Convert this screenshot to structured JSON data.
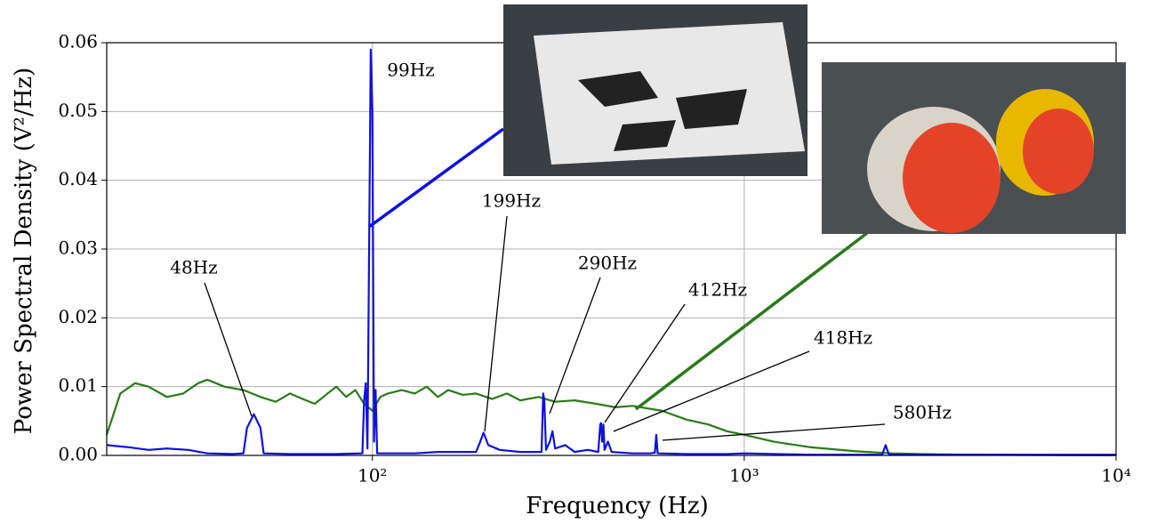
{
  "chart_data": {
    "type": "line",
    "xlabel": "Frequency (Hz)",
    "ylabel": "Power Spectral Density (V²/Hz)",
    "xscale": "log",
    "xlim": [
      19.3,
      10000
    ],
    "ylim": [
      0,
      0.06
    ],
    "xticks": [
      {
        "value": 100,
        "label": "10²"
      },
      {
        "value": 1000,
        "label": "10³"
      },
      {
        "value": 10000,
        "label": "10⁴"
      }
    ],
    "yticks": [
      {
        "value": 0,
        "label": "0.00"
      },
      {
        "value": 0.01,
        "label": "0.01"
      },
      {
        "value": 0.02,
        "label": "0.02"
      },
      {
        "value": 0.03,
        "label": "0.03"
      },
      {
        "value": 0.04,
        "label": "0.04"
      },
      {
        "value": 0.05,
        "label": "0.05"
      },
      {
        "value": 0.06,
        "label": "0.06"
      }
    ],
    "grid": true,
    "annotations": [
      "48Hz",
      "99Hz",
      "199Hz",
      "290Hz",
      "412Hz",
      "418Hz",
      "580Hz"
    ],
    "series": [
      {
        "color": "#2a7a1a",
        "x": [
          19.3,
          21,
          23,
          25,
          28,
          31,
          34,
          36,
          40,
          45,
          50,
          55,
          60,
          65,
          70,
          75,
          80,
          85,
          90,
          95,
          100,
          105,
          110,
          120,
          130,
          140,
          150,
          160,
          175,
          190,
          210,
          230,
          250,
          280,
          310,
          350,
          400,
          450,
          500,
          600,
          700,
          800,
          900,
          1000,
          1200,
          1500,
          2000,
          2500,
          3000,
          4000,
          6000,
          10000
        ],
        "values": [
          0.003,
          0.009,
          0.0105,
          0.01,
          0.0085,
          0.009,
          0.0105,
          0.011,
          0.01,
          0.0095,
          0.0085,
          0.0078,
          0.009,
          0.0082,
          0.0075,
          0.0088,
          0.01,
          0.0085,
          0.0095,
          0.0075,
          0.0065,
          0.0085,
          0.009,
          0.0095,
          0.009,
          0.01,
          0.0085,
          0.0095,
          0.0088,
          0.009,
          0.0082,
          0.009,
          0.008,
          0.0085,
          0.0078,
          0.008,
          0.0075,
          0.007,
          0.0072,
          0.0065,
          0.0052,
          0.0045,
          0.0035,
          0.003,
          0.002,
          0.0012,
          0.0006,
          0.0003,
          0.0002,
          0.0001,
          5e-05,
          2e-05
        ]
      },
      {
        "color": "#1010e0",
        "x": [
          19.3,
          22,
          25,
          28,
          32,
          36,
          42,
          45,
          46,
          48,
          50,
          51,
          60,
          80,
          94,
          95,
          96,
          97,
          98,
          99,
          100,
          101,
          102,
          103,
          130,
          150,
          190,
          195,
          199,
          205,
          220,
          250,
          285,
          288,
          290,
          293,
          300,
          305,
          310,
          330,
          350,
          380,
          405,
          410,
          412,
          415,
          418,
          421,
          430,
          440,
          500,
          560,
          575,
          580,
          585,
          700,
          900,
          1000,
          1500,
          2350,
          2400,
          2450,
          4000,
          10000
        ],
        "values": [
          0.0015,
          0.0012,
          0.0008,
          0.001,
          0.0008,
          0.0003,
          0.0002,
          0.0003,
          0.004,
          0.006,
          0.004,
          0.0003,
          0.0002,
          0.0002,
          0.0003,
          0.008,
          0.0105,
          0.001,
          0.03,
          0.059,
          0.05,
          0.002,
          0.0095,
          0.0003,
          0.0003,
          0.0005,
          0.0005,
          0.002,
          0.0033,
          0.0015,
          0.0008,
          0.0005,
          0.0005,
          0.009,
          0.008,
          0.0008,
          0.002,
          0.0035,
          0.001,
          0.0015,
          0.0005,
          0.0008,
          0.0005,
          0.0045,
          0.0047,
          0.002,
          0.0045,
          0.0008,
          0.002,
          0.0005,
          0.0003,
          0.0003,
          0.0004,
          0.003,
          0.0003,
          0.0002,
          0.0002,
          0.0003,
          0.0001,
          0.0001,
          0.0015,
          0.0001,
          0.0001,
          0.0001
        ]
      }
    ]
  }
}
